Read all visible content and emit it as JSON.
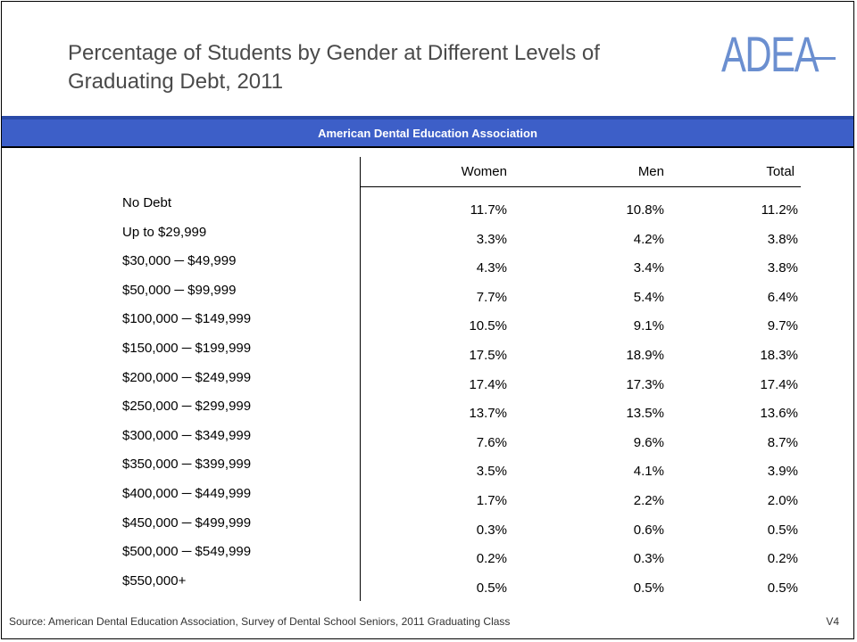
{
  "title": "Percentage of Students by Gender at Different Levels of Graduating Debt, 2011",
  "logo": {
    "text": "ADEA",
    "color": "#5b80c8"
  },
  "band": {
    "text": "American Dental Education Association"
  },
  "columns": [
    "Women",
    "Men",
    "Total"
  ],
  "rows": [
    {
      "label": "No Debt",
      "women": "11.7%",
      "men": "10.8%",
      "total": "11.2%"
    },
    {
      "label": "Up to $29,999",
      "women": "3.3%",
      "men": "4.2%",
      "total": "3.8%"
    },
    {
      "label": "$30,000 ─ $49,999",
      "women": "4.3%",
      "men": "3.4%",
      "total": "3.8%"
    },
    {
      "label": "$50,000 ─ $99,999",
      "women": "7.7%",
      "men": "5.4%",
      "total": "6.4%"
    },
    {
      "label": "$100,000 ─ $149,999",
      "women": "10.5%",
      "men": "9.1%",
      "total": "9.7%"
    },
    {
      "label": "$150,000 ─ $199,999",
      "women": "17.5%",
      "men": "18.9%",
      "total": "18.3%"
    },
    {
      "label": "$200,000 ─ $249,999",
      "women": "17.4%",
      "men": "17.3%",
      "total": "17.4%"
    },
    {
      "label": "$250,000 ─ $299,999",
      "women": "13.7%",
      "men": "13.5%",
      "total": "13.6%"
    },
    {
      "label": "$300,000 ─ $349,999",
      "women": "7.6%",
      "men": "9.6%",
      "total": "8.7%"
    },
    {
      "label": "$350,000 ─ $399,999",
      "women": "3.5%",
      "men": "4.1%",
      "total": "3.9%"
    },
    {
      "label": "$400,000 ─ $449,999",
      "women": "1.7%",
      "men": "2.2%",
      "total": "2.0%"
    },
    {
      "label": "$450,000 ─ $499,999",
      "women": "0.3%",
      "men": "0.6%",
      "total": "0.5%"
    },
    {
      "label": "$500,000 ─ $549,999",
      "women": "0.2%",
      "men": "0.3%",
      "total": "0.2%"
    },
    {
      "label": "$550,000+",
      "women": "0.5%",
      "men": "0.5%",
      "total": "0.5%"
    }
  ],
  "footer": {
    "source": "Source: American Dental Education Association, Survey of Dental School Seniors, 2011 Graduating Class",
    "slide": "V4"
  }
}
